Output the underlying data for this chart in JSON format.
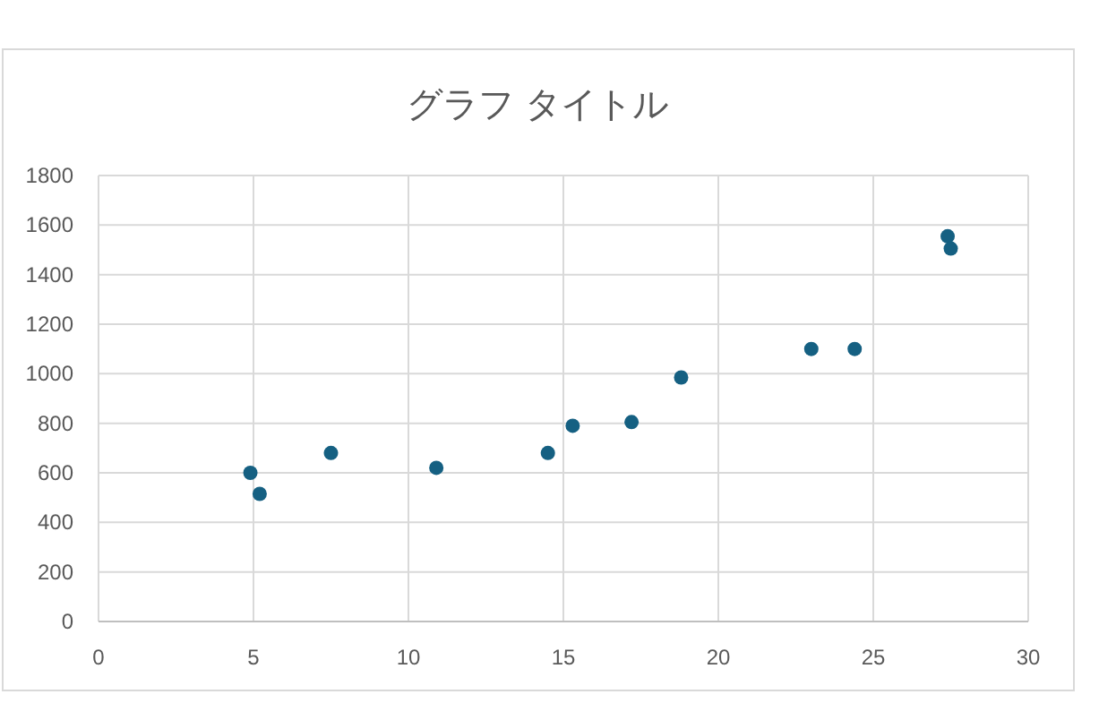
{
  "chart_data": {
    "type": "scatter",
    "title": "グラフ タイトル",
    "x": [
      4.9,
      5.2,
      7.5,
      10.9,
      14.5,
      15.3,
      17.2,
      18.8,
      23.0,
      24.4,
      27.4,
      27.5
    ],
    "values": [
      600,
      515,
      680,
      620,
      680,
      790,
      805,
      985,
      1100,
      1100,
      1555,
      1505
    ],
    "color": "#156082",
    "marker": "circle",
    "xlim": [
      0,
      30
    ],
    "xticks": [
      0,
      5,
      10,
      15,
      20,
      25,
      30
    ],
    "ylim": [
      0,
      1800
    ],
    "yticks": [
      0,
      200,
      400,
      600,
      800,
      1000,
      1200,
      1400,
      1600,
      1800
    ],
    "grid": true
  }
}
